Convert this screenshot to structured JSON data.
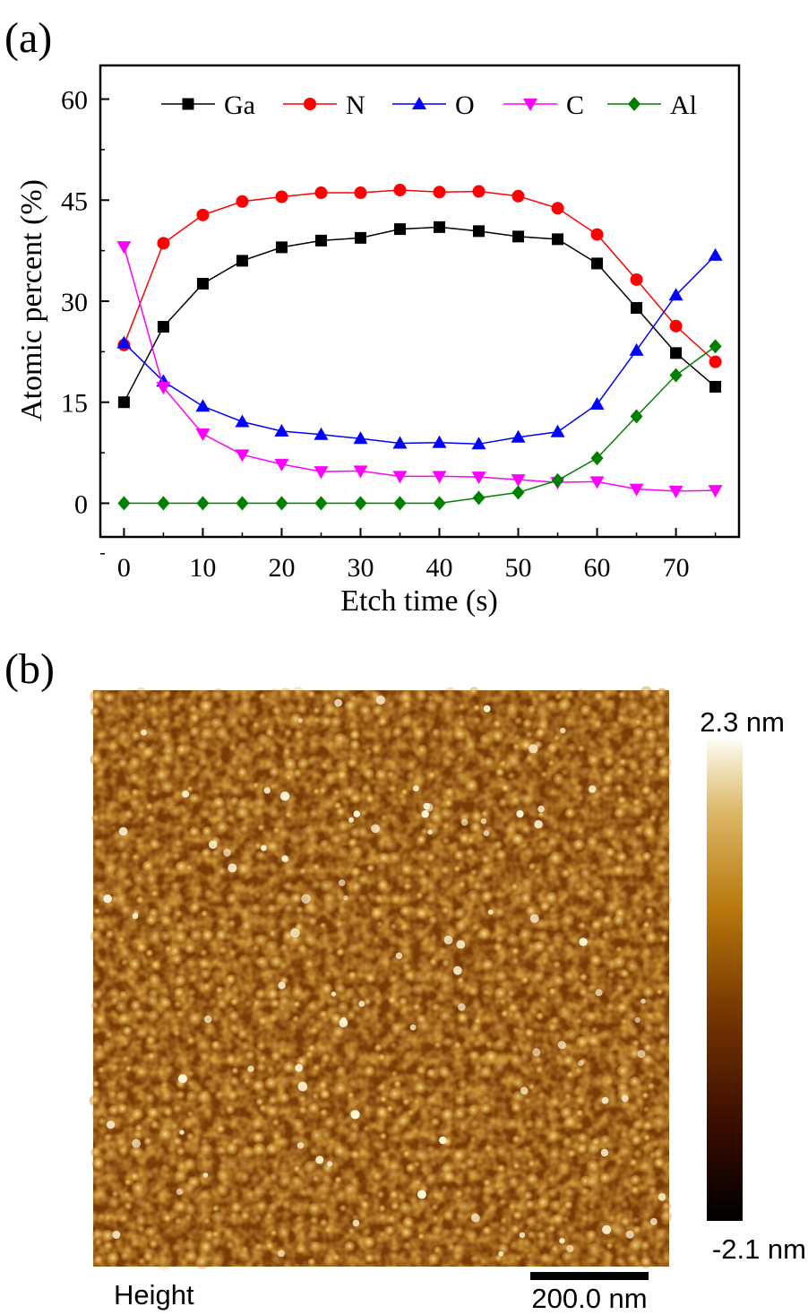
{
  "panel_a_label": "(a)",
  "panel_b_label": "(b)",
  "chart_data": [
    {
      "type": "line",
      "title": "",
      "xlabel": "Etch time (s)",
      "ylabel": "Atomic percent (%)",
      "xlim": [
        -3,
        78
      ],
      "ylim": [
        -5,
        65
      ],
      "xticks": [
        0,
        10,
        20,
        30,
        40,
        50,
        60,
        70
      ],
      "yticks": [
        0,
        15,
        30,
        45,
        60
      ],
      "grid": false,
      "legend_position": "top",
      "x": [
        0,
        5,
        10,
        15,
        20,
        25,
        30,
        35,
        40,
        45,
        50,
        55,
        60,
        65,
        70,
        75
      ],
      "series": [
        {
          "name": "Ga",
          "marker": "square",
          "color": "#000000",
          "values": [
            15.0,
            26.2,
            32.6,
            36.0,
            38.0,
            39.0,
            39.4,
            40.7,
            41.0,
            40.4,
            39.6,
            39.2,
            35.6,
            29.0,
            22.3,
            17.3
          ]
        },
        {
          "name": "N",
          "marker": "circle",
          "color": "#ff0000",
          "values": [
            23.5,
            38.6,
            42.8,
            44.8,
            45.5,
            46.1,
            46.1,
            46.5,
            46.2,
            46.3,
            45.6,
            43.8,
            39.9,
            33.2,
            26.3,
            21.0
          ]
        },
        {
          "name": "O",
          "marker": "triangle-up",
          "color": "#0000ff",
          "values": [
            23.8,
            18.1,
            14.4,
            12.1,
            10.7,
            10.2,
            9.6,
            8.9,
            9.0,
            8.8,
            9.8,
            10.6,
            14.7,
            22.7,
            30.9,
            36.8
          ]
        },
        {
          "name": "C",
          "marker": "triangle-down",
          "color": "#ff00ff",
          "values": [
            38.1,
            17.2,
            10.3,
            7.2,
            5.8,
            4.7,
            4.8,
            4.0,
            4.0,
            3.9,
            3.5,
            3.1,
            3.2,
            2.1,
            1.8,
            1.9
          ]
        },
        {
          "name": "Al",
          "marker": "diamond",
          "color": "#008000",
          "values": [
            0.0,
            0.0,
            0.0,
            0.0,
            0.0,
            0.0,
            0.0,
            0.0,
            0.0,
            0.8,
            1.6,
            3.4,
            6.7,
            12.9,
            19.0,
            23.3
          ]
        }
      ]
    },
    {
      "type": "heatmap",
      "bottom_label": "Height",
      "scale_bar_label": "200.0 nm",
      "colorbar": {
        "max_label": "2.3 nm",
        "min_label": "-2.1 nm",
        "max": 2.3,
        "min": -2.1,
        "colors": [
          "#000000",
          "#3a0c00",
          "#7a3a00",
          "#b8780c",
          "#dcb766",
          "#fdfbef"
        ]
      }
    }
  ]
}
